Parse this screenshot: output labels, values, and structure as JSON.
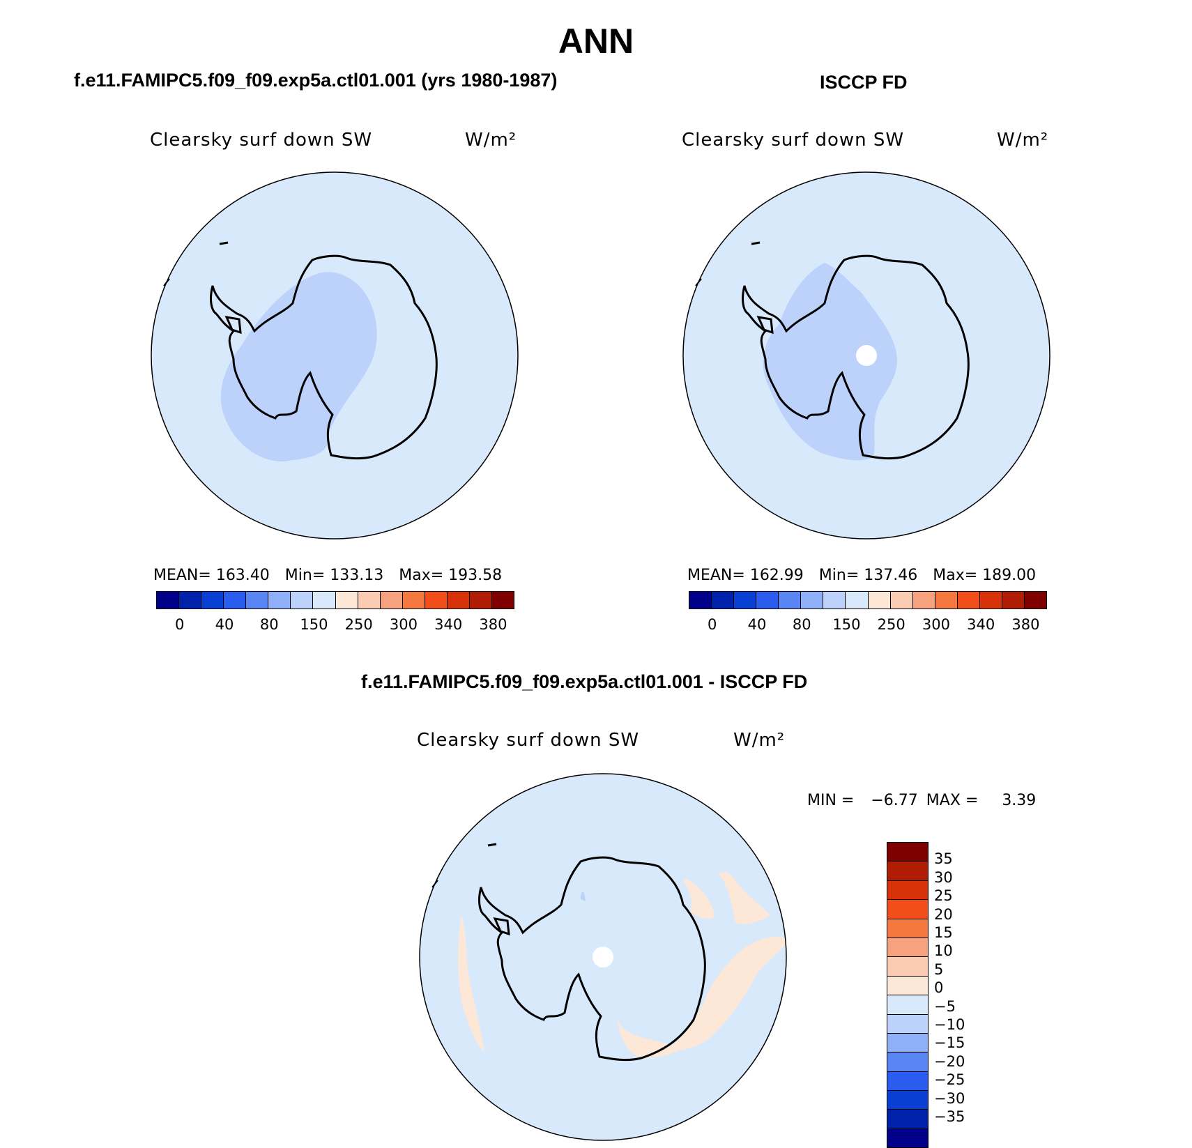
{
  "title": "ANN",
  "panels": [
    {
      "title": "f.e11.FAMIPC5.f09_f09.exp5a.ctl01.001 (yrs 1980-1987)",
      "variable": "Clearsky surf down SW",
      "units": "W/m²",
      "stats": {
        "mean": "MEAN= 163.40",
        "min": "Min= 133.13",
        "max": "Max= 193.58"
      }
    },
    {
      "title": "ISCCP FD",
      "variable": "Clearsky surf down SW",
      "units": "W/m²",
      "stats": {
        "mean": "MEAN= 162.99",
        "min": "Min= 137.46",
        "max": "Max= 189.00"
      }
    },
    {
      "title": "f.e11.FAMIPC5.f09_f09.exp5a.ctl01.001 - ISCCP FD",
      "variable": "Clearsky surf down SW",
      "units": "W/m²",
      "stats": {
        "min_label": "MIN =",
        "min": "−6.77",
        "max_label": "MAX =",
        "max": "3.39"
      }
    }
  ],
  "colorbar_abs": {
    "colors": [
      "#00008b",
      "#0022aa",
      "#0a3fd4",
      "#2a5cf0",
      "#5a85f5",
      "#8fb0f8",
      "#bcd2fb",
      "#d9e9fc",
      "#fde8d8",
      "#fbccb2",
      "#f7a27e",
      "#f5783f",
      "#f24e1a",
      "#d8320a",
      "#b01c04",
      "#800000"
    ],
    "labels": [
      "0",
      "40",
      "80",
      "150",
      "250",
      "300",
      "340",
      "380"
    ]
  },
  "colorbar_diff": {
    "colors": [
      "#800000",
      "#b01c04",
      "#d8320a",
      "#f24e1a",
      "#f5783f",
      "#f7a27e",
      "#fbccb2",
      "#fde8d8",
      "#d9e9fc",
      "#bcd2fb",
      "#8fb0f8",
      "#5a85f5",
      "#2a5cf0",
      "#0a3fd4",
      "#0022aa",
      "#00008b"
    ],
    "labels": [
      "35",
      "30",
      "25",
      "20",
      "15",
      "10",
      "5",
      "0",
      "−5",
      "−10",
      "−15",
      "−20",
      "−25",
      "−30",
      "−35"
    ]
  },
  "map_colors": {
    "ocean": "#d9e9fc",
    "interior": "#bcd2fb",
    "positive": "#fde8d8",
    "missing": "#ffffff",
    "coast": "#000000"
  }
}
